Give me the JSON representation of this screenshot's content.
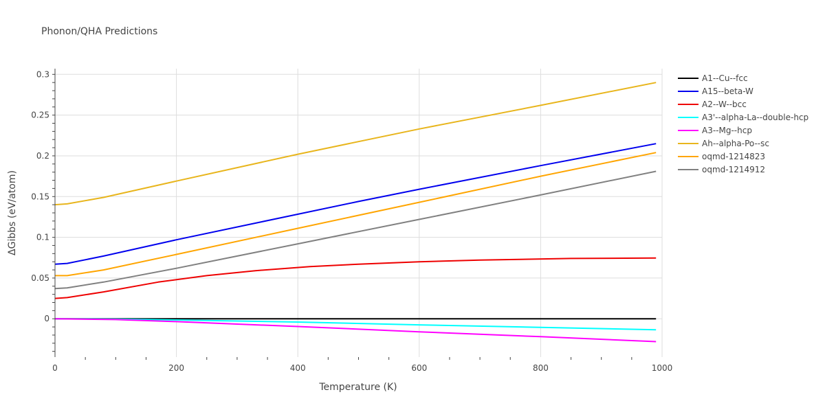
{
  "chart_data": {
    "type": "line",
    "title": "Phonon/QHA Predictions",
    "xlabel": "Temperature (K)",
    "ylabel": "ΔGibbs (eV/atom)",
    "xlim": [
      0,
      1000
    ],
    "ylim": [
      -0.047,
      0.307
    ],
    "x_ticks": [
      0,
      200,
      400,
      600,
      800,
      1000
    ],
    "x_tick_labels": [
      "0",
      "200",
      "400",
      "600",
      "800",
      "1000"
    ],
    "y_ticks": [
      0,
      0.05,
      0.1,
      0.15,
      0.2,
      0.25,
      0.3
    ],
    "y_tick_labels": [
      "0",
      "0.05",
      "0.1",
      "0.15",
      "0.2",
      "0.25",
      "0.3"
    ],
    "grid": true,
    "legend_position": "right",
    "series": [
      {
        "name": "A1--Cu--fcc",
        "color": "#000000",
        "points": [
          [
            0,
            0
          ],
          [
            200,
            0
          ],
          [
            400,
            0
          ],
          [
            600,
            0
          ],
          [
            800,
            0
          ],
          [
            990,
            0
          ]
        ]
      },
      {
        "name": "A15--beta-W",
        "color": "#0000ee",
        "points": [
          [
            0,
            0.067
          ],
          [
            20,
            0.068
          ],
          [
            80,
            0.077
          ],
          [
            200,
            0.097
          ],
          [
            340,
            0.119
          ],
          [
            500,
            0.144
          ],
          [
            600,
            0.159
          ],
          [
            800,
            0.188
          ],
          [
            990,
            0.215
          ]
        ]
      },
      {
        "name": "A2--W--bcc",
        "color": "#ee0000",
        "points": [
          [
            0,
            0.025
          ],
          [
            20,
            0.026
          ],
          [
            80,
            0.033
          ],
          [
            170,
            0.045
          ],
          [
            250,
            0.053
          ],
          [
            330,
            0.059
          ],
          [
            420,
            0.064
          ],
          [
            500,
            0.067
          ],
          [
            600,
            0.07
          ],
          [
            700,
            0.072
          ],
          [
            850,
            0.074
          ],
          [
            990,
            0.0745
          ]
        ]
      },
      {
        "name": "A3'--alpha-La--double-hcp",
        "color": "#00ffff",
        "points": [
          [
            0,
            0
          ],
          [
            100,
            -0.0005
          ],
          [
            200,
            -0.0015
          ],
          [
            400,
            -0.004
          ],
          [
            600,
            -0.0075
          ],
          [
            800,
            -0.0105
          ],
          [
            990,
            -0.0135
          ]
        ]
      },
      {
        "name": "A3--Mg--hcp",
        "color": "#ff00ff",
        "points": [
          [
            0,
            0
          ],
          [
            100,
            -0.001
          ],
          [
            200,
            -0.0035
          ],
          [
            400,
            -0.0095
          ],
          [
            600,
            -0.016
          ],
          [
            800,
            -0.022
          ],
          [
            990,
            -0.028
          ]
        ]
      },
      {
        "name": "Ah--alpha-Po--sc",
        "color": "#e8b51c",
        "points": [
          [
            0,
            0.14
          ],
          [
            20,
            0.141
          ],
          [
            80,
            0.149
          ],
          [
            200,
            0.169
          ],
          [
            400,
            0.202
          ],
          [
            600,
            0.233
          ],
          [
            800,
            0.262
          ],
          [
            990,
            0.29
          ]
        ]
      },
      {
        "name": "oqmd-1214823",
        "color": "#ffa500",
        "points": [
          [
            0,
            0.053
          ],
          [
            20,
            0.053
          ],
          [
            80,
            0.06
          ],
          [
            200,
            0.079
          ],
          [
            400,
            0.111
          ],
          [
            600,
            0.143
          ],
          [
            800,
            0.175
          ],
          [
            990,
            0.204
          ]
        ]
      },
      {
        "name": "oqmd-1214912",
        "color": "#808080",
        "points": [
          [
            0,
            0.037
          ],
          [
            20,
            0.038
          ],
          [
            80,
            0.045
          ],
          [
            200,
            0.062
          ],
          [
            400,
            0.092
          ],
          [
            600,
            0.122
          ],
          [
            800,
            0.152
          ],
          [
            990,
            0.181
          ]
        ]
      }
    ]
  }
}
